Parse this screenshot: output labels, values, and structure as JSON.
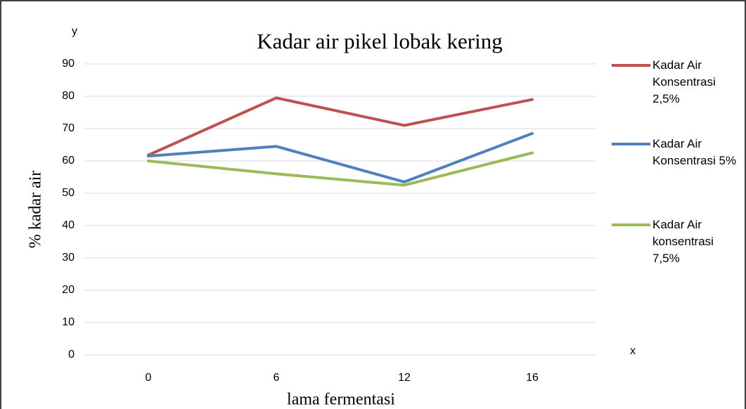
{
  "chart_data": {
    "type": "line",
    "title": "Kadar air pikel lobak kering",
    "x_label": "lama fermentasi",
    "y_label": "% kadar air",
    "annotations": [
      "y",
      "x"
    ],
    "categories": [
      "0",
      "6",
      "12",
      "16"
    ],
    "series": [
      {
        "name": "Kadar Air Konsentrasi 2,5%",
        "color": "#c0504d",
        "values": [
          61.8,
          79.5,
          71,
          79
        ]
      },
      {
        "name": "Kadar Air Konsentrasi 5%",
        "color": "#4f81bd",
        "values": [
          61.5,
          64.5,
          53.5,
          68.5
        ]
      },
      {
        "name": "Kadar Air konsentrasi 7,5%",
        "color": "#9bbb59",
        "values": [
          60,
          56,
          52.5,
          62.5
        ]
      }
    ],
    "ylim": [
      0,
      90
    ],
    "yticks": [
      0,
      10,
      20,
      30,
      40,
      50,
      60,
      70,
      80,
      90
    ],
    "grid": true,
    "legend": "right"
  }
}
